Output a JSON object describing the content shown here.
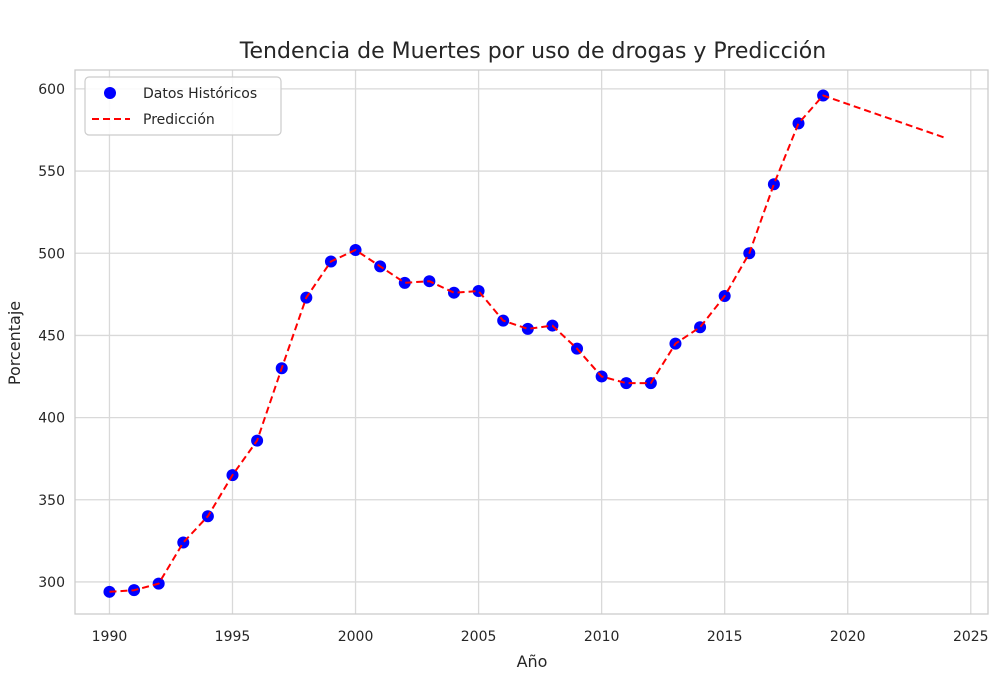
{
  "chart_data": {
    "type": "line",
    "title": "Tendencia de Muertes por uso de drogas y Predicción",
    "xlabel": "Año",
    "ylabel": "Porcentaje",
    "xlim": [
      1988.6,
      2025.7
    ],
    "ylim": [
      280.5,
      611.5
    ],
    "xticks": [
      1990,
      1995,
      2000,
      2005,
      2010,
      2015,
      2020,
      2025
    ],
    "yticks": [
      300,
      350,
      400,
      450,
      500,
      550,
      600
    ],
    "grid": true,
    "legend_position": "top-left",
    "series": [
      {
        "name": "Datos Históricos",
        "kind": "scatter",
        "color": "#0000ff",
        "x": [
          1990,
          1991,
          1992,
          1993,
          1994,
          1995,
          1996,
          1997,
          1998,
          1999,
          2000,
          2001,
          2002,
          2003,
          2004,
          2005,
          2006,
          2007,
          2008,
          2009,
          2010,
          2011,
          2012,
          2013,
          2014,
          2015,
          2016,
          2017,
          2018,
          2019
        ],
        "y": [
          294,
          295,
          299,
          324,
          340,
          365,
          386,
          430,
          473,
          495,
          502,
          492,
          482,
          483,
          476,
          477,
          459,
          454,
          456,
          442,
          425,
          421,
          421,
          445,
          455,
          474,
          500,
          542,
          579,
          596
        ]
      },
      {
        "name": "Predicción",
        "kind": "line",
        "style": "dashed",
        "color": "#ff0000",
        "x": [
          1990,
          1991,
          1992,
          1993,
          1994,
          1995,
          1996,
          1997,
          1998,
          1999,
          2000,
          2001,
          2002,
          2003,
          2004,
          2005,
          2006,
          2007,
          2008,
          2009,
          2010,
          2011,
          2012,
          2013,
          2014,
          2015,
          2016,
          2017,
          2018,
          2019,
          2024
        ],
        "y": [
          294,
          295,
          299,
          324,
          340,
          365,
          386,
          430,
          473,
          495,
          502,
          492,
          482,
          483,
          476,
          477,
          459,
          454,
          456,
          442,
          425,
          421,
          421,
          445,
          455,
          474,
          500,
          542,
          579,
          596,
          570
        ]
      }
    ]
  }
}
